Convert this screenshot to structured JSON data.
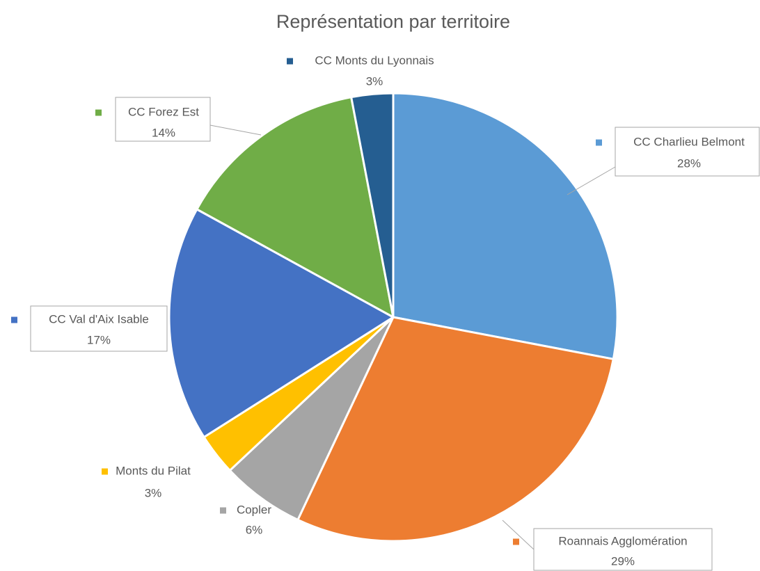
{
  "chart_data": {
    "type": "pie",
    "title": "Représentation par territoire",
    "categories": [
      "CC Charlieu Belmont",
      "Roannais Agglomération",
      "Copler",
      "Monts du Pilat",
      "CC Val d'Aix Isable",
      "CC Forez Est",
      "CC Monts du Lyonnais"
    ],
    "values": [
      28,
      29,
      6,
      3,
      17,
      14,
      3
    ],
    "value_labels": [
      "28%",
      "29%",
      "6%",
      "3%",
      "17%",
      "14%",
      "3%"
    ],
    "colors": [
      "#5b9bd5",
      "#ed7d31",
      "#a5a5a5",
      "#ffc000",
      "#4472c4",
      "#70ad47",
      "#255e91"
    ]
  }
}
